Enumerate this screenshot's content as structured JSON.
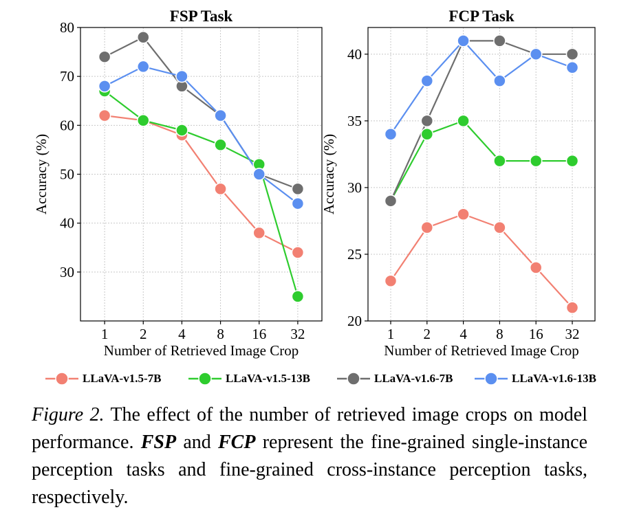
{
  "colors": {
    "llava_v15_7b": "#f28072",
    "llava_v15_13b": "#2ecc2e",
    "llava_v16_7b": "#6e6e6e",
    "llava_v16_13b": "#5b8ff0"
  },
  "chart_data": [
    {
      "type": "line",
      "title": "FSP Task",
      "xlabel": "Number of Retrieved Image Crop",
      "ylabel": "Accuracy (%)",
      "categories": [
        "1",
        "2",
        "4",
        "8",
        "16",
        "32"
      ],
      "ylim": [
        20,
        80
      ],
      "yticks": [
        30,
        40,
        50,
        60,
        70,
        80
      ],
      "grid": true,
      "series": [
        {
          "name": "LLaVA-v1.5-7B",
          "color_key": "llava_v15_7b",
          "values": [
            62,
            61,
            58,
            47,
            38,
            34
          ]
        },
        {
          "name": "LLaVA-v1.5-13B",
          "color_key": "llava_v15_13b",
          "values": [
            67,
            61,
            59,
            56,
            52,
            25
          ]
        },
        {
          "name": "LLaVA-v1.6-7B",
          "color_key": "llava_v16_7b",
          "values": [
            74,
            78,
            68,
            62,
            50,
            47
          ]
        },
        {
          "name": "LLaVA-v1.6-13B",
          "color_key": "llava_v16_13b",
          "values": [
            68,
            72,
            70,
            62,
            50,
            44
          ]
        }
      ]
    },
    {
      "type": "line",
      "title": "FCP Task",
      "xlabel": "Number of Retrieved Image Crop",
      "ylabel": "Accuracy (%)",
      "categories": [
        "1",
        "2",
        "4",
        "8",
        "16",
        "32"
      ],
      "ylim": [
        20,
        42
      ],
      "yticks": [
        20,
        25,
        30,
        35,
        40
      ],
      "grid": true,
      "series": [
        {
          "name": "LLaVA-v1.5-7B",
          "color_key": "llava_v15_7b",
          "values": [
            23,
            27,
            28,
            27,
            24,
            21
          ]
        },
        {
          "name": "LLaVA-v1.5-13B",
          "color_key": "llava_v15_13b",
          "values": [
            29,
            34,
            35,
            32,
            32,
            32
          ]
        },
        {
          "name": "LLaVA-v1.6-7B",
          "color_key": "llava_v16_7b",
          "values": [
            29,
            35,
            41,
            41,
            40,
            40
          ]
        },
        {
          "name": "LLaVA-v1.6-13B",
          "color_key": "llava_v16_13b",
          "values": [
            34,
            38,
            41,
            38,
            40,
            39
          ]
        }
      ]
    }
  ],
  "legend": {
    "placement": "bottom",
    "entries": [
      {
        "label": "LLaVA-v1.5-7B",
        "color_key": "llava_v15_7b"
      },
      {
        "label": "LLaVA-v1.5-13B",
        "color_key": "llava_v15_13b"
      },
      {
        "label": "LLaVA-v1.6-7B",
        "color_key": "llava_v16_7b"
      },
      {
        "label": "LLaVA-v1.6-13B",
        "color_key": "llava_v16_13b"
      }
    ]
  },
  "caption": {
    "lead": "Figure 2.",
    "text1": " The effect of the number of retrieved image crops on model performance. ",
    "fsp": "FSP",
    "and": " and ",
    "fcp": "FCP",
    "text2": " represent the fine-grained single-instance perception tasks and fine-grained cross-instance perception tasks, respectively."
  }
}
